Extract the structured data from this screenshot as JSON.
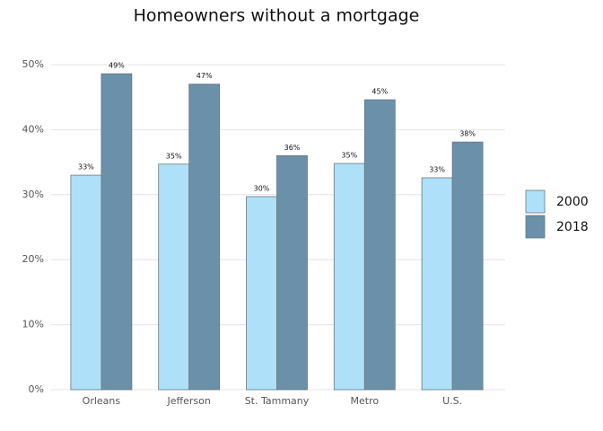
{
  "chart_data": {
    "type": "bar",
    "title": "Homeowners without a mortgage",
    "categories": [
      "Orleans",
      "Jefferson",
      "St. Tammany",
      "Metro",
      "U.S."
    ],
    "series": [
      {
        "name": "2000",
        "color": "#aee0fa",
        "values": [
          33.0,
          34.7,
          29.7,
          34.8,
          32.6
        ],
        "value_labels": [
          "33%",
          "35%",
          "30%",
          "35%",
          "33%"
        ]
      },
      {
        "name": "2018",
        "color": "#6a90aa",
        "values": [
          48.6,
          47.0,
          36.0,
          44.6,
          38.1
        ],
        "value_labels": [
          "49%",
          "47%",
          "36%",
          "45%",
          "38%"
        ]
      }
    ],
    "ylim": [
      0,
      50
    ],
    "yticks": [
      {
        "value": 0,
        "label": "0%"
      },
      {
        "value": 10,
        "label": "10%"
      },
      {
        "value": 20,
        "label": "20%"
      },
      {
        "value": 30,
        "label": "30%"
      },
      {
        "value": 40,
        "label": "40%"
      },
      {
        "value": 50,
        "label": "50%"
      }
    ],
    "grid": true,
    "legend": "right"
  }
}
